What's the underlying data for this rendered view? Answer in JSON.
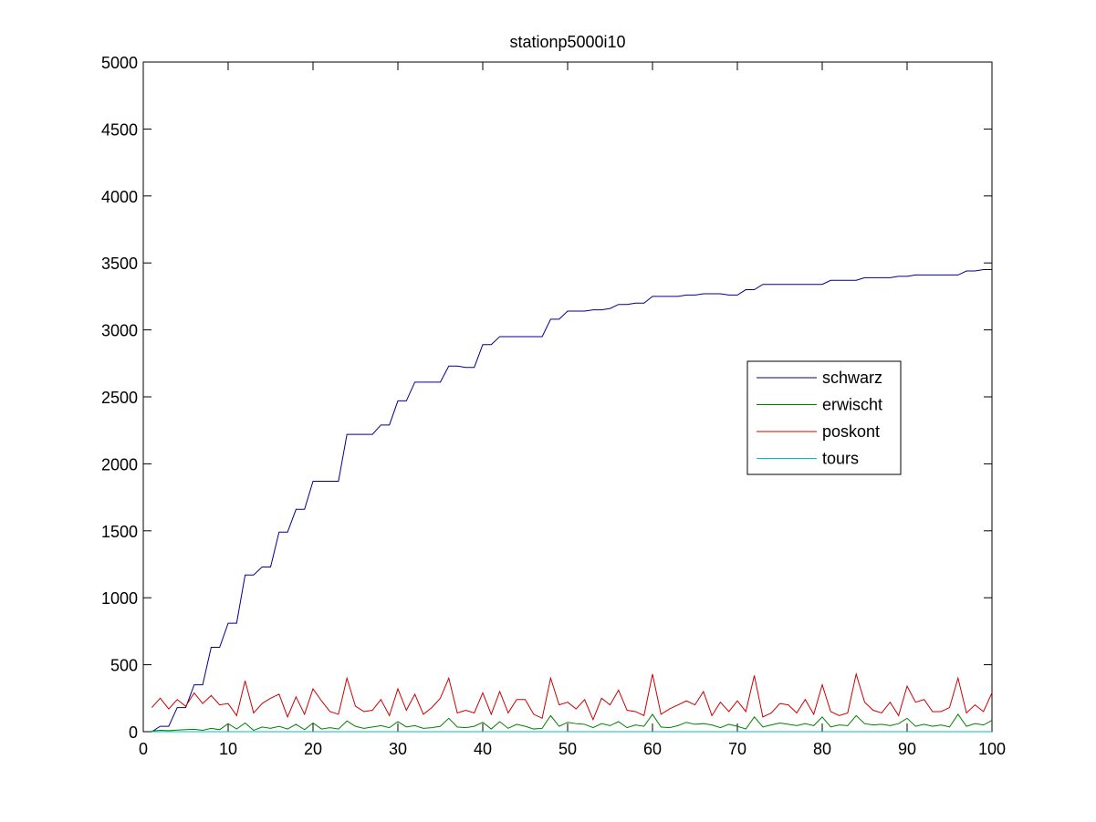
{
  "chart_data": {
    "type": "line",
    "title": "stationp5000i10",
    "xlabel": "",
    "ylabel": "",
    "xlim": [
      0,
      100
    ],
    "ylim": [
      0,
      5000
    ],
    "x_ticks": [
      0,
      10,
      20,
      30,
      40,
      50,
      60,
      70,
      80,
      90,
      100
    ],
    "y_ticks": [
      0,
      500,
      1000,
      1500,
      2000,
      2500,
      3000,
      3500,
      4000,
      4500,
      5000
    ],
    "grid": false,
    "legend_position": "right",
    "x": [
      1,
      2,
      3,
      4,
      5,
      6,
      7,
      8,
      9,
      10,
      11,
      12,
      13,
      14,
      15,
      16,
      17,
      18,
      19,
      20,
      21,
      22,
      23,
      24,
      25,
      26,
      27,
      28,
      29,
      30,
      31,
      32,
      33,
      34,
      35,
      36,
      37,
      38,
      39,
      40,
      41,
      42,
      43,
      44,
      45,
      46,
      47,
      48,
      49,
      50,
      51,
      52,
      53,
      54,
      55,
      56,
      57,
      58,
      59,
      60,
      61,
      62,
      63,
      64,
      65,
      66,
      67,
      68,
      69,
      70,
      71,
      72,
      73,
      74,
      75,
      76,
      77,
      78,
      79,
      80,
      81,
      82,
      83,
      84,
      85,
      86,
      87,
      88,
      89,
      90,
      91,
      92,
      93,
      94,
      95,
      96,
      97,
      98,
      99,
      100
    ],
    "series": [
      {
        "name": "schwarz",
        "color": "#00008b",
        "values": [
          0,
          40,
          40,
          180,
          180,
          350,
          350,
          630,
          630,
          810,
          810,
          1170,
          1170,
          1230,
          1230,
          1490,
          1490,
          1660,
          1660,
          1870,
          1870,
          1870,
          1870,
          2220,
          2220,
          2220,
          2220,
          2290,
          2290,
          2470,
          2470,
          2610,
          2610,
          2610,
          2610,
          2730,
          2730,
          2720,
          2720,
          2890,
          2890,
          2950,
          2950,
          2950,
          2950,
          2950,
          2950,
          3080,
          3080,
          3140,
          3140,
          3140,
          3150,
          3150,
          3160,
          3190,
          3190,
          3200,
          3200,
          3250,
          3250,
          3250,
          3250,
          3260,
          3260,
          3270,
          3270,
          3270,
          3260,
          3260,
          3300,
          3300,
          3340,
          3340,
          3340,
          3340,
          3340,
          3340,
          3340,
          3340,
          3370,
          3370,
          3370,
          3370,
          3390,
          3390,
          3390,
          3390,
          3400,
          3400,
          3410,
          3410,
          3410,
          3410,
          3410,
          3410,
          3440,
          3440,
          3450,
          3450
        ]
      },
      {
        "name": "erwischt",
        "color": "#008000",
        "values": [
          5,
          10,
          8,
          12,
          15,
          18,
          10,
          25,
          15,
          60,
          20,
          65,
          10,
          35,
          25,
          40,
          20,
          55,
          15,
          65,
          20,
          30,
          20,
          80,
          40,
          25,
          35,
          45,
          30,
          75,
          35,
          45,
          25,
          30,
          40,
          100,
          35,
          30,
          40,
          70,
          20,
          75,
          25,
          55,
          40,
          20,
          25,
          120,
          40,
          70,
          60,
          55,
          30,
          60,
          45,
          75,
          30,
          50,
          40,
          130,
          35,
          30,
          45,
          70,
          55,
          60,
          50,
          30,
          55,
          40,
          20,
          110,
          35,
          50,
          65,
          55,
          45,
          60,
          45,
          110,
          35,
          50,
          45,
          120,
          60,
          50,
          55,
          45,
          60,
          100,
          40,
          55,
          40,
          50,
          35,
          130,
          40,
          60,
          50,
          85
        ]
      },
      {
        "name": "poskont",
        "color": "#cc0000",
        "values": [
          180,
          250,
          170,
          240,
          190,
          290,
          210,
          270,
          200,
          210,
          120,
          380,
          140,
          210,
          250,
          280,
          110,
          260,
          130,
          320,
          230,
          150,
          130,
          400,
          190,
          150,
          160,
          240,
          120,
          320,
          160,
          280,
          130,
          180,
          250,
          400,
          140,
          160,
          140,
          290,
          130,
          300,
          140,
          240,
          240,
          130,
          100,
          400,
          200,
          220,
          170,
          240,
          90,
          250,
          200,
          310,
          160,
          150,
          120,
          430,
          130,
          170,
          200,
          230,
          200,
          300,
          120,
          220,
          150,
          230,
          150,
          420,
          110,
          140,
          210,
          200,
          140,
          240,
          130,
          350,
          150,
          120,
          140,
          430,
          220,
          160,
          140,
          220,
          120,
          340,
          220,
          240,
          150,
          150,
          180,
          400,
          140,
          200,
          150,
          290
        ]
      },
      {
        "name": "tours",
        "color": "#00bfbf",
        "values": [
          0,
          0,
          0,
          0,
          0,
          0,
          0,
          0,
          0,
          0,
          0,
          0,
          0,
          0,
          0,
          0,
          0,
          0,
          0,
          0,
          0,
          0,
          0,
          0,
          0,
          0,
          0,
          0,
          0,
          0,
          0,
          0,
          0,
          0,
          0,
          0,
          0,
          0,
          0,
          0,
          0,
          0,
          0,
          0,
          0,
          0,
          0,
          0,
          0,
          0,
          0,
          0,
          0,
          0,
          0,
          0,
          0,
          0,
          0,
          0,
          0,
          0,
          0,
          0,
          0,
          0,
          0,
          0,
          0,
          0,
          0,
          0,
          0,
          0,
          0,
          0,
          0,
          0,
          0,
          0,
          0,
          0,
          0,
          0,
          0,
          0,
          0,
          0,
          0,
          0,
          0,
          0,
          0,
          0,
          0,
          0,
          0,
          0,
          0,
          0
        ]
      }
    ]
  }
}
